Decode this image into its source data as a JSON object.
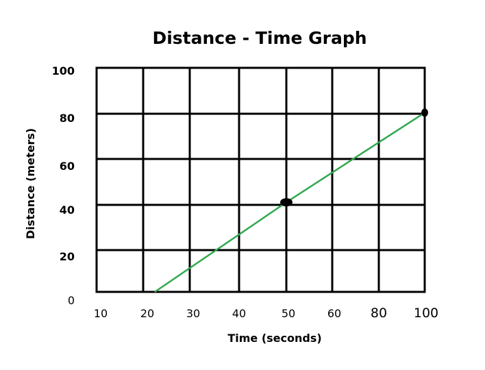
{
  "chart_data": {
    "type": "line",
    "title": "Distance - Time Graph",
    "xlabel": "Time (seconds)",
    "ylabel": "Distance (meters)",
    "x_tick_labels": [
      "10",
      "20",
      "30",
      "40",
      "50",
      "60",
      "80",
      "100"
    ],
    "y_tick_labels": [
      "0",
      "20",
      "40",
      "60",
      "80",
      "100"
    ],
    "grid": true,
    "line_color": "#2fa84f",
    "grid_color": "#000000",
    "series": [
      {
        "points": [
          {
            "x": 22.5,
            "y": 0
          },
          {
            "x": 50,
            "y": 40
          },
          {
            "x": 100,
            "y": 80
          }
        ],
        "markers": [
          {
            "x": 50,
            "y": 40
          },
          {
            "x": 100,
            "y": 80
          }
        ]
      }
    ]
  }
}
